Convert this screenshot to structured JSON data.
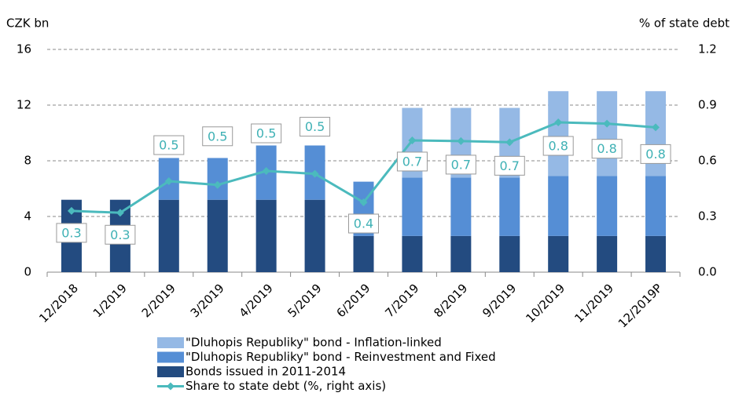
{
  "chart_data": {
    "type": "bar",
    "y_label": "CZK bn",
    "y2_label": "% of state debt",
    "categories": [
      "12/2018",
      "1/2019",
      "2/2019",
      "3/2019",
      "4/2019",
      "5/2019",
      "6/2019",
      "7/2019",
      "8/2019",
      "9/2019",
      "10/2019",
      "11/2019",
      "12/2019P"
    ],
    "series": [
      {
        "name": "Bonds issued in 2011-2014",
        "color": "#234b80",
        "values": [
          5.2,
          5.2,
          5.2,
          5.2,
          5.2,
          5.2,
          2.6,
          2.6,
          2.6,
          2.6,
          2.6,
          2.6,
          2.6
        ]
      },
      {
        "name": "\"Dluhopis Republiky\" bond - Reinvestment and Fixed",
        "color": "#558ed5",
        "values": [
          0,
          0,
          3.0,
          3.0,
          3.9,
          3.9,
          3.9,
          4.2,
          4.2,
          4.2,
          4.3,
          4.3,
          4.3
        ]
      },
      {
        "name": "\"Dluhopis Republiky\" bond - Inflation-linked",
        "color": "#95b9e5",
        "values": [
          0,
          0,
          0,
          0,
          0,
          0,
          0,
          5.0,
          5.0,
          5.0,
          6.1,
          6.1,
          6.1
        ]
      },
      {
        "name": "Share to state debt (%, right axis)",
        "color": "#4bbabd",
        "type": "line",
        "axis": "y2",
        "values": [
          0.33,
          0.32,
          0.49,
          0.47,
          0.545,
          0.53,
          0.376,
          0.71,
          0.706,
          0.7,
          0.807,
          0.8,
          0.78
        ],
        "value_labels": [
          "0.3",
          "0.3",
          "0.5",
          "0.5",
          "0.5",
          "0.5",
          "0.4",
          "0.7",
          "0.7",
          "0.7",
          "0.8",
          "0.8",
          "0.8"
        ]
      }
    ],
    "ylim": [
      0,
      16
    ],
    "yticks": [
      0,
      4,
      8,
      12,
      16
    ],
    "y2lim": [
      0,
      1.2
    ],
    "y2ticks": [
      {
        "value": 0,
        "label": "0.0"
      },
      {
        "value": 0.3,
        "label": "0.3"
      },
      {
        "value": 0.6,
        "label": "0.6"
      },
      {
        "value": 0.9,
        "label": "0.9"
      },
      {
        "value": 1.2,
        "label": "1.2"
      }
    ],
    "grid": true,
    "stacked": true,
    "legend": "bottom"
  }
}
